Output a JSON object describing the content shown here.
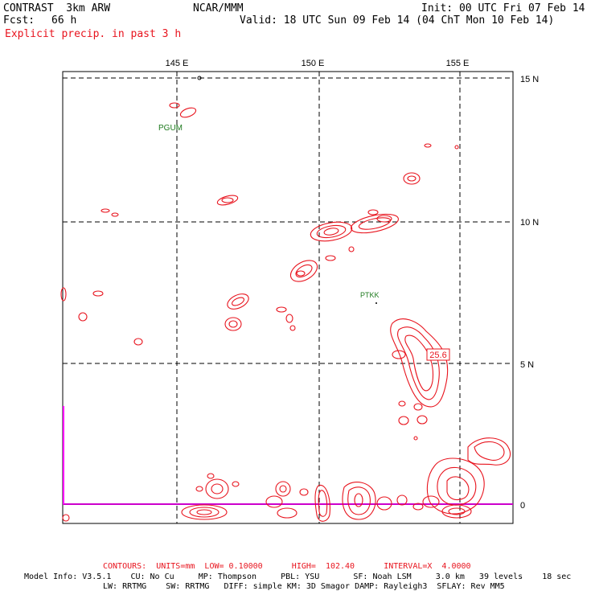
{
  "header": {
    "model": "CONTRAST  3km ARW",
    "center": "NCAR/MMM",
    "init": "Init: 00 UTC Fri 07 Feb 14",
    "fcst_label": "Fcst:",
    "fcst_value": "66 h",
    "valid": "Valid: 18 UTC Sun 09 Feb 14 (04 ChT Mon 10 Feb 14)",
    "field": "Explicit precip. in past 3 h"
  },
  "map": {
    "lon_labels": [
      "145 E",
      "150 E",
      "155 E"
    ],
    "lat_labels": [
      "15 N",
      "10 N",
      "5 N",
      "0"
    ],
    "stations": [
      "PGUM",
      "PTKK"
    ],
    "max_label": "25.6",
    "colors": {
      "contour": "#e8141e",
      "grid": "#000000",
      "station": "#1e7a1e",
      "equator": "#cc00cc"
    }
  },
  "footer": {
    "contours": "CONTOURS:  UNITS=mm  LOW= 0.10000      HIGH=  102.40      INTERVAL=X  4.0000",
    "model_info_1": "Model Info: V3.5.1    CU: No Cu     MP: Thompson     PBL: YSU       SF: Noah LSM     3.0 km   39 levels    18 sec",
    "model_info_2": "LW: RRTMG    SW: RRTMG   DIFF: simple KM: 3D Smagor DAMP: Rayleigh3  SFLAY: Rev MM5"
  }
}
